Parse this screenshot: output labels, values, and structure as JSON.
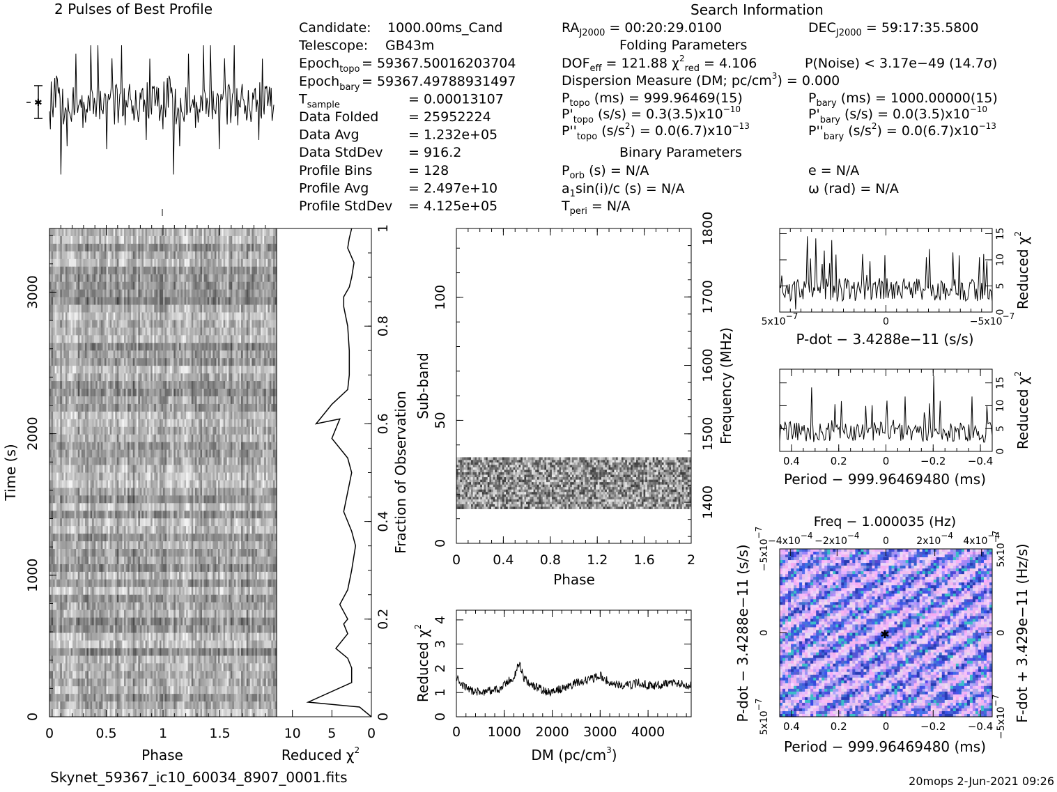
{
  "file_name": "Skynet_59367_ic10_60034_8907_0001.fits",
  "footer": "20mops   2-Jun-2021 09:26",
  "candidate_info": [
    {
      "label": "Candidate:",
      "value": "1000.00ms_Cand"
    },
    {
      "label": "Telescope:",
      "value": "GB43m"
    },
    {
      "label": "Epoch",
      "sub": "topo",
      "value": "= 59367.50016203704"
    },
    {
      "label": "Epoch",
      "sub": "bary",
      "value": "= 59367.49788931497"
    },
    {
      "label": "T",
      "sub": "sample",
      "value": "=    0.00013107"
    },
    {
      "label": "Data Folded",
      "value": "=    25952224"
    },
    {
      "label": "Data Avg",
      "value": "=    1.232e+05"
    },
    {
      "label": "Data StdDev",
      "value": "=    916.2"
    },
    {
      "label": "Profile Bins",
      "value": "=    128"
    },
    {
      "label": "Profile Avg",
      "value": "=    2.497e+10"
    },
    {
      "label": "Profile StdDev",
      "value": "=    4.125e+05"
    }
  ],
  "search_info": {
    "title": "Search Information",
    "ra_label": "RA",
    "ra_sub": "J2000",
    "ra_value": "= 00:20:29.0100",
    "dec_label": "DEC",
    "dec_sub": "J2000",
    "dec_value": "= 59:17:35.5800",
    "folding_title": "Folding Parameters",
    "dof": "DOF",
    "dof_sub": "eff",
    "dof_value": "= 121.88",
    "chi_sub": "red",
    "chi_value": "= 4.106",
    "pnoise": "P(Noise) < 3.17e−49   (14.7σ)",
    "dm_line": "Dispersion Measure (DM; pc/cm",
    "dm_sup": "3",
    "dm_end": ") = 0.000",
    "ptopo": "P",
    "ptopo_sub": "topo",
    "ptopo_value": "(ms) =  999.96469(15)",
    "pbary": "P",
    "pbary_sub": "bary",
    "pbary_value": "(ms) =  1000.00000(15)",
    "pdtopo": "P'",
    "pdtopo_sub": "topo",
    "pdtopo_value": "(s/s) =  0.3(3.5)x10",
    "pdtopo_exp": "−10",
    "pdbary": "P'",
    "pdbary_sub": "bary",
    "pdbary_value": "(s/s) = 0.0(3.5)x10",
    "pdbary_exp": "−10",
    "pddtopo": "P''",
    "pddtopo_sub": "topo",
    "pddtopo_value": "(s/s",
    "pddtopo_sup": "2",
    "pddtopo_end": ") = 0.0(6.7)x10",
    "pddtopo_exp": "−13",
    "pddbary": "P''",
    "pddbary_sub": "bary",
    "pddbary_value": "(s/s",
    "pddbary_sup": "2",
    "pddbary_end": ") = 0.0(6.7)x10",
    "pddbary_exp": "−13",
    "binary_title": "Binary Parameters",
    "porb": "P",
    "porb_sub": "orb",
    "porb_value": "(s) = N/A",
    "ecc": "e = N/A",
    "asini": "a",
    "asini_sub": "1",
    "asini_value": "sin(i)/c (s) = N/A",
    "omega": "ω (rad) = N/A",
    "tperi": "T",
    "tperi_sub": "peri",
    "tperi_value": "= N/A"
  },
  "chart_data": [
    {
      "type": "line",
      "id": "pulse_profile",
      "title": "2 Pulses of Best Profile",
      "xlabel": "",
      "ylabel": "",
      "x_range": [
        0,
        2
      ],
      "note": "noisy profile, 256 bins over two pulses"
    },
    {
      "type": "heatmap",
      "id": "time_phase",
      "xlabel": "Phase",
      "ylabel": "Time (s)",
      "x_range": [
        0,
        2
      ],
      "y_range": [
        0,
        3450
      ],
      "x_ticks": [
        "0",
        "0.5",
        "1",
        "1.5"
      ],
      "y_ticks": [
        "0",
        "1000",
        "2000",
        "3000"
      ],
      "colormap": "grayscale"
    },
    {
      "type": "line",
      "id": "reduced_chi2_vs_time",
      "xlabel": "Reduced χ",
      "xlabel_sup": "2",
      "ylabel": "Fraction of Observation",
      "x_range": [
        12,
        0
      ],
      "y_range": [
        0,
        1
      ],
      "x_ticks": [
        "10",
        "5",
        "0"
      ],
      "y_ticks": [
        "0",
        "0.2",
        "0.4",
        "0.6",
        "0.8",
        "1"
      ],
      "x": [
        0,
        1.5,
        8,
        2.5,
        2.5,
        3,
        4.5,
        3,
        3.5,
        3,
        4,
        3,
        2.5,
        2,
        2.5,
        3.5,
        3,
        2.5,
        3,
        5,
        4,
        7,
        5,
        3,
        2.8,
        2.8,
        3,
        3.5,
        3.5,
        2.8,
        2.5,
        2.2,
        3,
        2.8,
        2.5
      ],
      "y": [
        0,
        0.02,
        0.03,
        0.07,
        0.1,
        0.12,
        0.14,
        0.17,
        0.19,
        0.2,
        0.23,
        0.26,
        0.3,
        0.35,
        0.38,
        0.42,
        0.46,
        0.5,
        0.53,
        0.57,
        0.61,
        0.6,
        0.64,
        0.67,
        0.7,
        0.75,
        0.8,
        0.84,
        0.86,
        0.88,
        0.9,
        0.93,
        0.96,
        0.98,
        1.0
      ]
    },
    {
      "type": "heatmap",
      "id": "subband_phase",
      "xlabel": "Phase",
      "ylabel": "Sub-band",
      "y2label": "Frequency (MHz)",
      "x_range": [
        0,
        2
      ],
      "y_range": [
        0,
        128
      ],
      "y2_range": [
        1340,
        1800
      ],
      "x_ticks": [
        "0",
        "0.4",
        "0.8",
        "1.2",
        "1.6",
        "2"
      ],
      "y_ticks": [
        "0",
        "50",
        "100"
      ],
      "y2_ticks": [
        "1400",
        "1500",
        "1600",
        "1700",
        "1800"
      ],
      "occupied_subbands": [
        14,
        35
      ],
      "colormap": "grayscale"
    },
    {
      "type": "line",
      "id": "dm_curve",
      "xlabel": "DM (pc/cm",
      "xlabel_sup": "3",
      "xlabel_end": ")",
      "ylabel": "Reduced χ",
      "ylabel_sup": "2",
      "x_range": [
        0,
        4900
      ],
      "y_range": [
        0,
        4.4
      ],
      "x_ticks": [
        "0",
        "1000",
        "2000",
        "3000",
        "4000"
      ],
      "y_ticks": [
        "0",
        "1",
        "2",
        "3",
        "4"
      ],
      "x": [
        0,
        100,
        300,
        500,
        700,
        900,
        1100,
        1200,
        1300,
        1350,
        1400,
        1500,
        1700,
        1900,
        2100,
        2300,
        2500,
        2700,
        2900,
        3000,
        3200,
        3400,
        3600,
        3800,
        4000,
        4200,
        4400,
        4600,
        4800,
        4900
      ],
      "y": [
        1.6,
        1.3,
        1.1,
        1.0,
        1.1,
        1.1,
        1.5,
        1.6,
        2.2,
        2.0,
        1.6,
        1.4,
        1.2,
        1.0,
        1.1,
        1.2,
        1.4,
        1.5,
        1.6,
        1.7,
        1.4,
        1.3,
        1.3,
        1.4,
        1.3,
        1.3,
        1.4,
        1.4,
        1.3,
        1.3
      ]
    },
    {
      "type": "line",
      "id": "pdot_curve",
      "xlabel": "P-dot − 3.4288e−11 (s/s)",
      "ylabel": "Reduced χ",
      "ylabel_sup": "2",
      "x_range": [
        5e-07,
        -5e-07
      ],
      "y_range": [
        0,
        16
      ],
      "x_ticks": [
        "5x10",
        "0",
        "−5x10"
      ],
      "x_tick_exp": "−7",
      "y_ticks": [
        "0",
        "5",
        "10",
        "15"
      ]
    },
    {
      "type": "line",
      "id": "period_curve",
      "xlabel": "Period − 999.96469480 (ms)",
      "ylabel": "Reduced χ",
      "ylabel_sup": "2",
      "x_range": [
        0.45,
        -0.45
      ],
      "y_range": [
        0,
        18
      ],
      "x_ticks": [
        "0.4",
        "0.2",
        "0",
        "−0.2",
        "−0.4"
      ],
      "y_ticks": [
        "0",
        "5",
        "10",
        "15"
      ]
    },
    {
      "type": "heatmap",
      "id": "period_pdot_plane",
      "title": "Freq − 1.000035 (Hz)",
      "xlabel": "Period − 999.96469480 (ms)",
      "ylabel": "P-dot − 3.4288e−11 (s/s)",
      "y2label": "F-dot + 3.429e−11 (Hz/s)",
      "x_range": [
        0.45,
        -0.45
      ],
      "y_range": [
        -5e-07,
        5e-07
      ],
      "x_ticks": [
        "0.4",
        "0.2",
        "0",
        "−0.2",
        "−0.4"
      ],
      "x2_ticks": [
        "−4x10",
        "−2x10",
        "0",
        "2x10",
        "4x10"
      ],
      "x2_tick_exp": "−4",
      "y_ticks": [
        "−5x10",
        "0",
        "5x10"
      ],
      "y_tick_exp": "−7",
      "y2_ticks": [
        "5x10",
        "0",
        "−5x10"
      ],
      "y2_tick_exp": "−7",
      "colormap": "blue-pink"
    }
  ]
}
